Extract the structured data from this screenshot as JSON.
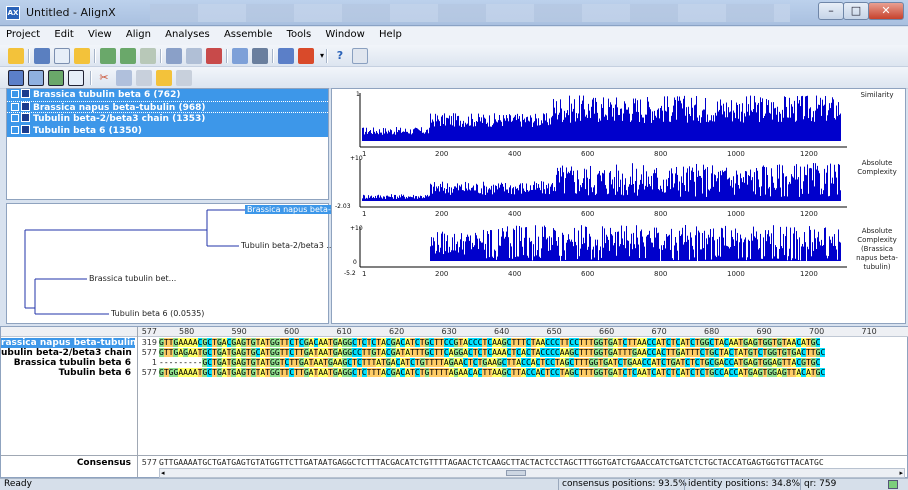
{
  "window": {
    "title": "Untitled - AlignX",
    "icon": "alignx-app-icon"
  },
  "menu": [
    "Project",
    "Edit",
    "View",
    "Align",
    "Analyses",
    "Assemble",
    "Tools",
    "Window",
    "Help"
  ],
  "sequences": [
    {
      "label": "Brassica tubulin beta 6 (762)"
    },
    {
      "label": "Brassica napus beta-tubulin (968)"
    },
    {
      "label": "Tubulin beta-2/beta3 chain (1353)"
    },
    {
      "label": "Tubulin beta 6 (1350)"
    }
  ],
  "tree": {
    "leaves": [
      "Brassica napus beta-t...",
      "Tubulin beta-2/beta3 ...",
      "Brassica tubulin bet...",
      "Tubulin beta 6 (0.0535)"
    ]
  },
  "graphs": [
    {
      "label": "Similarity",
      "ymax": "1",
      "ymin": ""
    },
    {
      "label": "Absolute Complexity",
      "ymax": "+10",
      "ymin": "-2.03"
    },
    {
      "label": "Absolute Complexity (Brassica napus beta-tubulin)",
      "ymax": "+10",
      "ymin": "-5.2",
      "zero": "0"
    }
  ],
  "graph_xticks": [
    "1",
    "200",
    "400",
    "600",
    "800",
    "1000",
    "1200"
  ],
  "alignment": {
    "start_col": "577",
    "ruler": [
      "580",
      "590",
      "600",
      "610",
      "620",
      "630",
      "640",
      "650",
      "660",
      "670",
      "680",
      "690",
      "700",
      "710"
    ],
    "rows": [
      {
        "name": "rassica napus beta-tubulin",
        "num": "319",
        "seq": "GTTGAAAACGCTGACGAGTGTATGGTTCTCGACAATGAGGCTCTCTACGACATCTGCTTCCGTACCCTCAAGCTTTCTAACCCTTCCTTTGGTGATCTTAACCATCTCATCTGGCTACAATGAGTGGTGTAACATGC"
      },
      {
        "name": "ubulin beta-2/beta3 chain",
        "num": "577",
        "seq": "GTTGAGAATGCTGATGAGTGCATGGTTCTTGATAATGAGGCCTTGTACGATATTTGCTTCAGGACTCTCAAACTCACTACCCCAAGCTTTGGTGATTTGAACCACTTGATTTCTGCTACTATGTCTGGTGTGACTTGC"
      },
      {
        "name": "Brassica tubulin beta 6",
        "num": "1",
        "seq": "---------GCTGATGAGTGTATGGTCTTGATAATGAAGCTCTTTATGACATCTGTTTTAGAACTCTGAAGCTTACCACTCCTAGCTTTGGTGATCTGAACCATCTGATCTCTGCGACCATGAGTGGAGTTACGTGC"
      },
      {
        "name": "Tubulin beta 6",
        "num": "577",
        "seq": "GTGGAAAATGCTGATGAGTGTATGGTTCTTGATAATGAGGCTCTTTACGACATCTGTTTTAGAACACTTAAGCTTACCACTCCTAGCTTTGGTGATCTCAATCATCTCATCTCTGCCACCATGAGTGGAGTTACATGC"
      }
    ],
    "consensus_label": "Consensus",
    "consensus_num": "577",
    "consensus_seq": "GTTGAAAATGCTGATGAGTGTATGGTTCTTGATAATGAGGCTCTTTACGACATCTGTTTTAGAACTCTCAAGCTTACTACTCCTAGCTTTGGTGATCTGAACCATCTGATCTCTGCTACCATGAGTGGTGTTACATGC"
  },
  "status": {
    "left": "Ready",
    "consensus_positions": "consensus positions: 93.5%",
    "identity_positions": "identity positions: 34.8%",
    "qr": "qr: 759"
  },
  "colors": {
    "A": "#ffff66",
    "C": "#00e0ff",
    "G": "#8fe08f",
    "T": "#ffcc66",
    "selection": "#3d97e9",
    "graph_bar": "#0000cc"
  }
}
